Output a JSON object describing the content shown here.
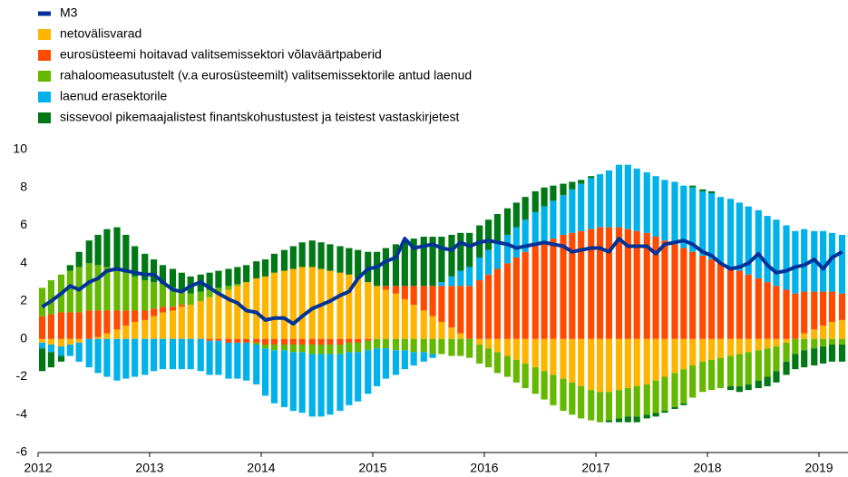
{
  "chart_data": {
    "type": "bar",
    "stacked": true,
    "x": [
      2012,
      2012.08,
      2012.17,
      2012.25,
      2012.33,
      2012.42,
      2012.5,
      2012.58,
      2012.67,
      2012.75,
      2012.83,
      2012.92,
      2013,
      2013.08,
      2013.17,
      2013.25,
      2013.33,
      2013.42,
      2013.5,
      2013.58,
      2013.67,
      2013.75,
      2013.83,
      2013.92,
      2014,
      2014.08,
      2014.17,
      2014.25,
      2014.33,
      2014.42,
      2014.5,
      2014.58,
      2014.67,
      2014.75,
      2014.83,
      2014.92,
      2015,
      2015.08,
      2015.17,
      2015.25,
      2015.33,
      2015.42,
      2015.5,
      2015.58,
      2015.67,
      2015.75,
      2015.83,
      2015.92,
      2016,
      2016.08,
      2016.17,
      2016.25,
      2016.33,
      2016.42,
      2016.5,
      2016.58,
      2016.67,
      2016.75,
      2016.83,
      2016.92,
      2017,
      2017.08,
      2017.17,
      2017.25,
      2017.33,
      2017.42,
      2017.5,
      2017.58,
      2017.67,
      2017.75,
      2017.83,
      2017.92,
      2018,
      2018.08,
      2018.17,
      2018.25,
      2018.33,
      2018.42,
      2018.5,
      2018.58,
      2018.67,
      2018.75,
      2018.83,
      2018.92,
      2019,
      2019.08,
      2019.17
    ],
    "xlim": [
      2012,
      2019.26
    ],
    "xticks": [
      2012,
      2013,
      2014,
      2015,
      2016,
      2017,
      2018,
      2019
    ],
    "ylim": [
      -6,
      10
    ],
    "yticks": [
      -6,
      -4,
      -2,
      0,
      2,
      4,
      6,
      8,
      10
    ],
    "legend": "top-left",
    "series": [
      {
        "name": "M3",
        "type": "line",
        "color": "#003299",
        "values": [
          1.7,
          2.0,
          2.4,
          2.8,
          2.6,
          3.0,
          3.2,
          3.6,
          3.7,
          3.6,
          3.5,
          3.4,
          3.4,
          3.0,
          2.6,
          2.5,
          2.8,
          3.0,
          2.7,
          2.4,
          2.1,
          1.9,
          1.5,
          1.4,
          1.0,
          1.1,
          1.1,
          0.8,
          1.2,
          1.6,
          1.8,
          2.0,
          2.3,
          2.5,
          3.2,
          3.7,
          3.8,
          4.1,
          4.3,
          5.3,
          4.8,
          4.9,
          5.0,
          4.8,
          4.7,
          5.1,
          4.9,
          5.1,
          5.2,
          5.1,
          5.0,
          4.8,
          4.9,
          5.0,
          5.1,
          5.0,
          4.9,
          4.6,
          4.7,
          4.8,
          4.8,
          4.6,
          5.3,
          4.9,
          4.9,
          4.9,
          4.5,
          5.0,
          5.1,
          5.2,
          5.0,
          4.6,
          4.4,
          4.0,
          3.7,
          3.8,
          4.0,
          4.5,
          3.9,
          3.5,
          3.6,
          3.8,
          3.9,
          4.2,
          3.7,
          4.3,
          4.6
        ]
      },
      {
        "name": "netovälisvarad",
        "type": "bar",
        "color": "#ffb400",
        "values": [
          -0.2,
          -0.3,
          -0.4,
          -0.3,
          -0.2,
          0,
          0.1,
          0.3,
          0.5,
          0.7,
          0.9,
          1.0,
          1.2,
          1.4,
          1.5,
          1.7,
          1.8,
          2.0,
          2.2,
          2.4,
          2.6,
          2.8,
          3.0,
          3.2,
          3.3,
          3.5,
          3.6,
          3.7,
          3.8,
          3.8,
          3.7,
          3.6,
          3.5,
          3.4,
          3.2,
          3.0,
          2.8,
          2.6,
          2.4,
          2.1,
          1.8,
          1.5,
          1.2,
          0.9,
          0.6,
          0.3,
          0,
          -0.3,
          -0.5,
          -0.7,
          -0.9,
          -1.1,
          -1.3,
          -1.5,
          -1.7,
          -1.9,
          -2.1,
          -2.3,
          -2.5,
          -2.7,
          -2.8,
          -2.8,
          -2.7,
          -2.6,
          -2.5,
          -2.4,
          -2.2,
          -2.0,
          -1.8,
          -1.6,
          -1.4,
          -1.2,
          -1.1,
          -1.0,
          -0.9,
          -0.8,
          -0.7,
          -0.6,
          -0.5,
          -0.4,
          -0.2,
          0,
          0.3,
          0.5,
          0.7,
          0.9,
          1.0
        ]
      },
      {
        "name": "eurosüsteemi hoitavad valitsemissektori võlaväärtpaberid",
        "type": "bar",
        "color": "#ff4b00",
        "values": [
          1.2,
          1.3,
          1.4,
          1.4,
          1.4,
          1.5,
          1.4,
          1.2,
          1.0,
          0.8,
          0.6,
          0.5,
          0.4,
          0.3,
          0.2,
          0.1,
          0,
          0,
          -0.1,
          -0.1,
          -0.2,
          -0.2,
          -0.2,
          -0.2,
          -0.3,
          -0.3,
          -0.3,
          -0.3,
          -0.3,
          -0.3,
          -0.3,
          -0.3,
          -0.3,
          -0.2,
          -0.2,
          -0.1,
          0,
          0.2,
          0.4,
          0.7,
          1.0,
          1.3,
          1.6,
          1.9,
          2.2,
          2.5,
          2.8,
          3.1,
          3.4,
          3.7,
          4.0,
          4.3,
          4.6,
          4.9,
          5.1,
          5.3,
          5.5,
          5.6,
          5.7,
          5.8,
          5.9,
          5.9,
          5.9,
          5.8,
          5.7,
          5.6,
          5.4,
          5.2,
          5.0,
          4.8,
          4.6,
          4.4,
          4.2,
          4.0,
          3.8,
          3.6,
          3.4,
          3.2,
          3.0,
          2.8,
          2.6,
          2.4,
          2.2,
          2.0,
          1.8,
          1.6,
          1.4
        ]
      },
      {
        "name": "rahaloomeasutustelt (v.a eurosüsteemilt) valitsemissektorile antud laenud",
        "type": "bar",
        "color": "#65b800",
        "values": [
          1.5,
          1.8,
          2.0,
          2.2,
          2.4,
          2.5,
          2.4,
          2.3,
          2.2,
          2.0,
          1.8,
          1.6,
          1.4,
          1.2,
          1.0,
          0.8,
          0.6,
          0.5,
          0.4,
          0.3,
          0.2,
          0.1,
          0,
          -0.1,
          -0.2,
          -0.3,
          -0.3,
          -0.4,
          -0.4,
          -0.5,
          -0.5,
          -0.5,
          -0.5,
          -0.5,
          -0.5,
          -0.5,
          -0.5,
          -0.5,
          -0.6,
          -0.6,
          -0.7,
          -0.7,
          -0.8,
          -0.8,
          -0.9,
          -0.9,
          -1.0,
          -1.0,
          -1.0,
          -1.1,
          -1.1,
          -1.2,
          -1.3,
          -1.4,
          -1.5,
          -1.6,
          -1.7,
          -1.7,
          -1.7,
          -1.6,
          -1.6,
          -1.5,
          -1.5,
          -1.5,
          -1.6,
          -1.6,
          -1.7,
          -1.8,
          -1.8,
          -1.8,
          -1.7,
          -1.6,
          -1.6,
          -1.6,
          -1.6,
          -1.7,
          -1.7,
          -1.6,
          -1.5,
          -1.3,
          -1.0,
          -0.8,
          -0.6,
          -0.5,
          -0.4,
          -0.3,
          -0.3
        ]
      },
      {
        "name": "laenud erasektorile",
        "type": "bar",
        "color": "#00b1ea",
        "values": [
          -0.3,
          -0.4,
          -0.5,
          -0.6,
          -1.0,
          -1.5,
          -1.8,
          -2.0,
          -2.2,
          -2.1,
          -2.0,
          -1.9,
          -1.7,
          -1.6,
          -1.6,
          -1.6,
          -1.6,
          -1.7,
          -1.8,
          -1.8,
          -1.9,
          -1.9,
          -2.0,
          -2.1,
          -2.5,
          -2.8,
          -3.0,
          -3.1,
          -3.2,
          -3.3,
          -3.3,
          -3.2,
          -3.0,
          -2.8,
          -2.6,
          -2.3,
          -2.0,
          -1.6,
          -1.3,
          -1.0,
          -0.7,
          -0.5,
          -0.2,
          0.2,
          0.5,
          0.8,
          1.0,
          1.2,
          1.3,
          1.4,
          1.5,
          1.6,
          1.7,
          1.8,
          1.9,
          2.0,
          2.1,
          2.3,
          2.5,
          2.7,
          2.8,
          3.0,
          3.3,
          3.4,
          3.3,
          3.2,
          3.2,
          3.2,
          3.3,
          3.3,
          3.4,
          3.4,
          3.5,
          3.5,
          3.6,
          3.6,
          3.6,
          3.6,
          3.5,
          3.5,
          3.4,
          3.3,
          3.3,
          3.2,
          3.2,
          3.1,
          3.1
        ]
      },
      {
        "name": "sissevool pikemaajalistest finantskohustustest ja teistest vastaskirjetest",
        "type": "bar",
        "color": "#007816",
        "values": [
          -1.2,
          -0.8,
          -0.3,
          0.3,
          0.8,
          1.2,
          1.6,
          2.0,
          2.2,
          2.0,
          1.6,
          1.4,
          1.2,
          1.0,
          1.0,
          0.9,
          0.9,
          0.9,
          0.9,
          0.9,
          0.9,
          0.9,
          0.9,
          0.9,
          0.9,
          1.0,
          1.1,
          1.2,
          1.3,
          1.4,
          1.4,
          1.4,
          1.4,
          1.4,
          1.5,
          1.6,
          1.8,
          2.0,
          2.2,
          2.4,
          2.5,
          2.6,
          2.6,
          2.4,
          2.2,
          2.0,
          1.8,
          1.7,
          1.6,
          1.5,
          1.4,
          1.3,
          1.2,
          1.1,
          1.0,
          0.8,
          0.6,
          0.4,
          0.2,
          0.1,
          0,
          -0.1,
          -0.2,
          -0.3,
          -0.3,
          -0.2,
          -0.2,
          -0.1,
          -0.1,
          -0.1,
          0.1,
          0.1,
          0.1,
          0,
          -0.2,
          -0.3,
          -0.3,
          -0.4,
          -0.5,
          -0.6,
          -0.7,
          -0.8,
          -0.9,
          -0.9,
          -0.9,
          -0.9,
          -0.9
        ]
      }
    ]
  }
}
